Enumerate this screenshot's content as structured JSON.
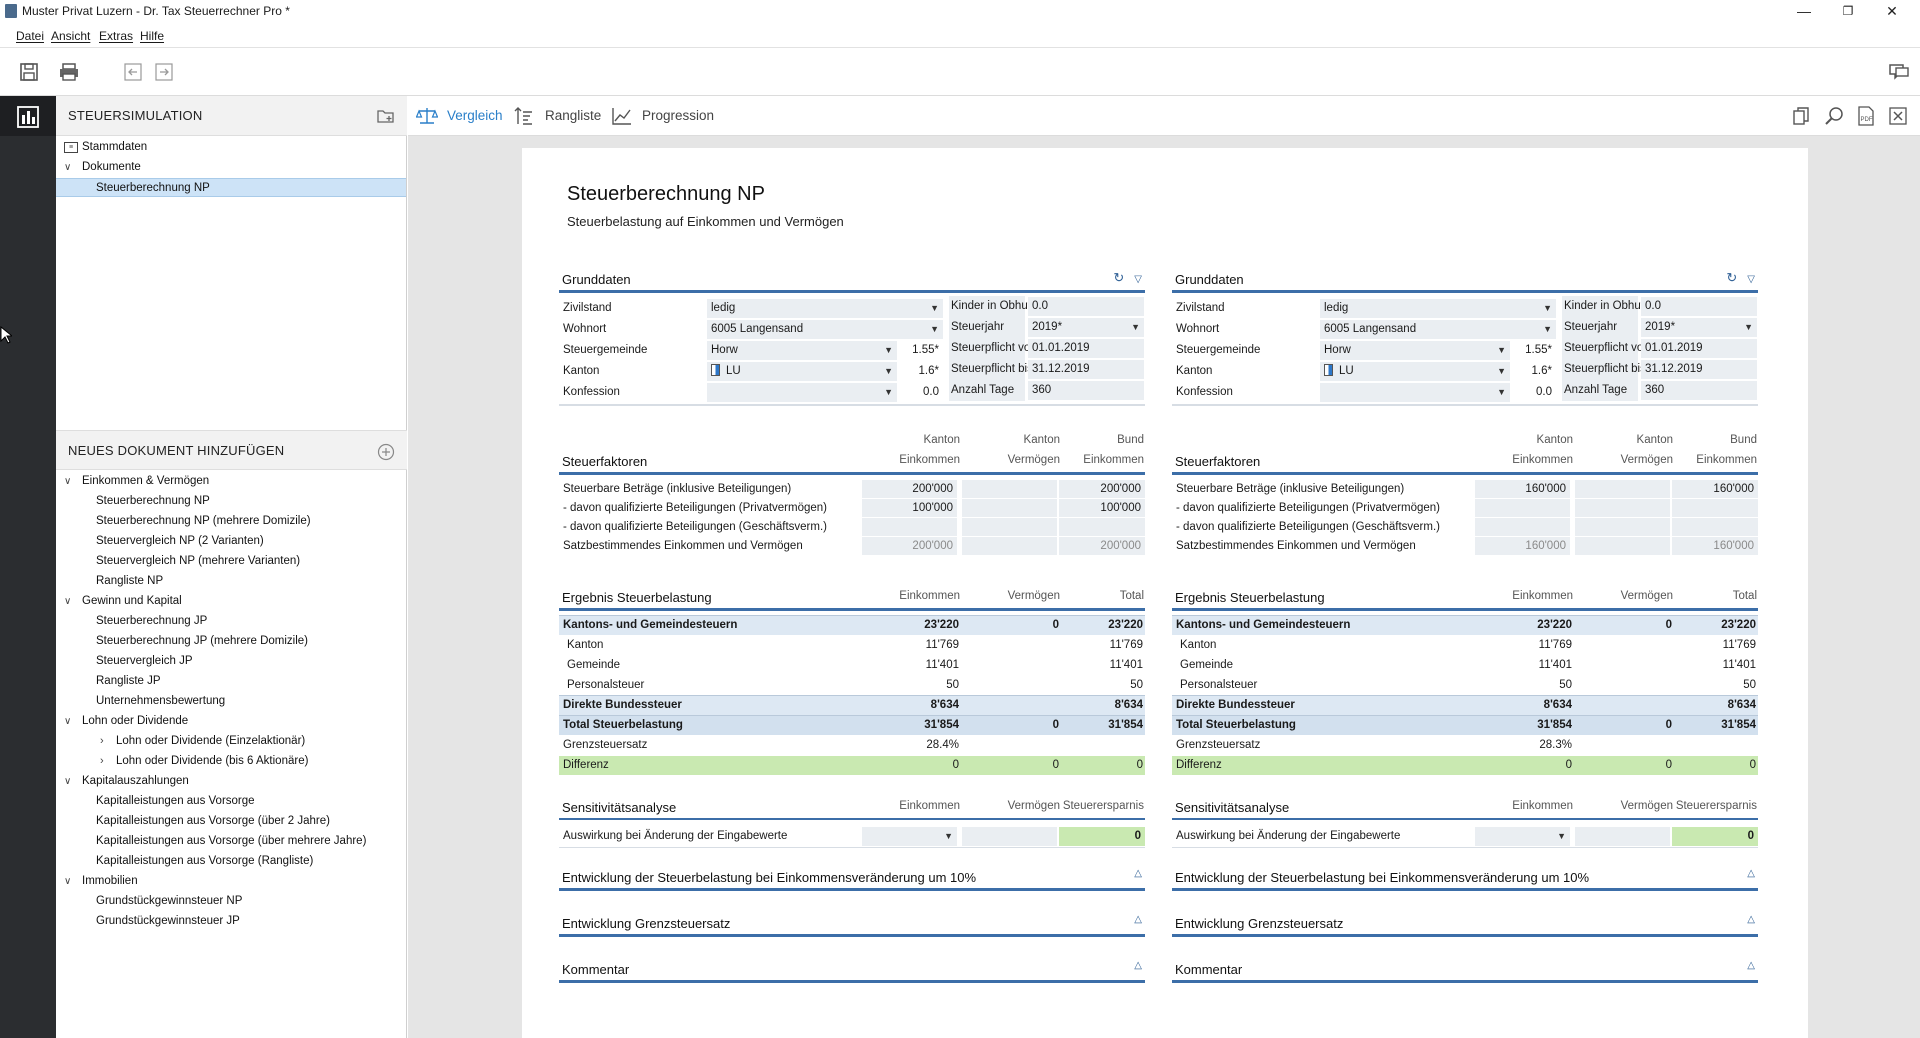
{
  "window": {
    "title": "Muster Privat Luzern - Dr. Tax Steuerrechner Pro *"
  },
  "menu": [
    "Datei",
    "Ansicht",
    "Extras",
    "Hilfe"
  ],
  "sidebar": {
    "section1_title": "STEUERSIMULATION",
    "tree1": [
      {
        "label": "Stammdaten",
        "level": 0
      },
      {
        "label": "Dokumente",
        "level": 0
      },
      {
        "label": "Steuerberechnung NP",
        "level": 1
      }
    ],
    "section2_title": "NEUES DOKUMENT HINZUFÜGEN",
    "tree2": [
      {
        "label": "Einkommen & Vermögen",
        "level": 0
      },
      {
        "label": "Steuerberechnung NP",
        "level": 1
      },
      {
        "label": "Steuerberechnung NP (mehrere Domizile)",
        "level": 1
      },
      {
        "label": "Steuervergleich NP (2 Varianten)",
        "level": 1
      },
      {
        "label": "Steuervergleich NP (mehrere Varianten)",
        "level": 1
      },
      {
        "label": "Rangliste NP",
        "level": 1
      },
      {
        "label": "Gewinn und Kapital",
        "level": 0
      },
      {
        "label": "Steuerberechnung JP",
        "level": 1
      },
      {
        "label": "Steuerberechnung JP (mehrere Domizile)",
        "level": 1
      },
      {
        "label": "Steuervergleich JP",
        "level": 1
      },
      {
        "label": "Rangliste JP",
        "level": 1
      },
      {
        "label": "Unternehmensbewertung",
        "level": 1
      },
      {
        "label": "Lohn oder Dividende",
        "level": 0
      },
      {
        "label": "Lohn oder Dividende (Einzelaktionär)",
        "level": 2
      },
      {
        "label": "Lohn oder Dividende (bis 6 Aktionäre)",
        "level": 2
      },
      {
        "label": "Kapitalauszahlungen",
        "level": 0
      },
      {
        "label": "Kapitalleistungen aus Vorsorge",
        "level": 1
      },
      {
        "label": "Kapitalleistungen aus Vorsorge (über 2 Jahre)",
        "level": 1
      },
      {
        "label": "Kapitalleistungen aus Vorsorge (über mehrere Jahre)",
        "level": 1
      },
      {
        "label": "Kapitalleistungen aus Vorsorge (Rangliste)",
        "level": 1
      },
      {
        "label": "Immobilien",
        "level": 0
      },
      {
        "label": "Grundstückgewinnsteuer NP",
        "level": 1
      },
      {
        "label": "Grundstückgewinnsteuer JP",
        "level": 1
      }
    ]
  },
  "tabs": [
    "Vergleich",
    "Rangliste",
    "Progression"
  ],
  "doc": {
    "title": "Steuerberechnung NP",
    "subtitle": "Steuerbelastung auf Einkommen und Vermögen"
  },
  "columns": [
    {
      "grund_title": "Grunddaten",
      "grund": [
        {
          "label": "Zivilstand",
          "value": "ledig",
          "num": "",
          "rlabel": "Kinder in Obhut",
          "rvalue": "0.0"
        },
        {
          "label": "Wohnort",
          "value": "6005 Langensand",
          "num": "",
          "rlabel": "Steuerjahr",
          "rvalue": "2019*"
        },
        {
          "label": "Steuergemeinde",
          "value": "Horw",
          "num": "1.55*",
          "rlabel": "Steuerpflicht von",
          "rvalue": "01.01.2019"
        },
        {
          "label": "Kanton",
          "value": "LU",
          "num": "1.6*",
          "rlabel": "Steuerpflicht bis",
          "rvalue": "31.12.2019"
        },
        {
          "label": "Konfession",
          "value": "",
          "num": "0.0",
          "rlabel": "Anzahl Tage",
          "rvalue": "360"
        }
      ],
      "faktoren_title": "Steuerfaktoren",
      "faktoren_headers": [
        [
          "Kanton",
          "Einkommen"
        ],
        [
          "Kanton",
          "Vermögen"
        ],
        [
          "Bund",
          "Einkommen"
        ]
      ],
      "faktoren": [
        {
          "label": "Steuerbare Beträge (inklusive Beteiligungen)",
          "v": [
            "200'000",
            "",
            "200'000"
          ]
        },
        {
          "label": "- davon qualifizierte Beteiligungen (Privatvermögen)",
          "v": [
            "100'000",
            "",
            "100'000"
          ]
        },
        {
          "label": "- davon qualifizierte Beteiligungen (Geschäftsverm.)",
          "v": [
            "",
            "",
            ""
          ]
        },
        {
          "label": "Satzbestimmendes Einkommen und Vermögen",
          "v": [
            "200'000",
            "",
            "200'000"
          ]
        }
      ],
      "ergebnis_title": "Ergebnis Steuerbelastung",
      "ergebnis_headers": [
        "Einkommen",
        "Vermögen",
        "Total"
      ],
      "ergebnis": [
        {
          "label": "Kantons- und Gemeindesteuern",
          "v": [
            "23'220",
            "0",
            "23'220"
          ]
        },
        {
          "label": "Kanton",
          "v": [
            "11'769",
            "",
            "11'769"
          ]
        },
        {
          "label": "Gemeinde",
          "v": [
            "11'401",
            "",
            "11'401"
          ]
        },
        {
          "label": "Personalsteuer",
          "v": [
            "50",
            "",
            "50"
          ]
        },
        {
          "label": "Direkte Bundessteuer",
          "v": [
            "8'634",
            "",
            "8'634"
          ]
        },
        {
          "label": "Total Steuerbelastung",
          "v": [
            "31'854",
            "0",
            "31'854"
          ]
        },
        {
          "label": "Grenzsteuersatz",
          "v": [
            "28.4%",
            "",
            ""
          ]
        },
        {
          "label": "Differenz",
          "v": [
            "0",
            "0",
            "0"
          ]
        }
      ],
      "sens_title": "Sensitivitätsanalyse",
      "sens_headers": [
        "Einkommen",
        "Vermögen",
        "Steuerersparnis"
      ],
      "sens_label": "Auswirkung bei Änderung der Eingabewerte",
      "sens_value": "0",
      "collapsed": [
        "Entwicklung der Steuerbelastung bei Einkommensveränderung um 10%",
        "Entwicklung Grenzsteuersatz",
        "Kommentar"
      ]
    },
    {
      "grund_title": "Grunddaten",
      "grund": [
        {
          "label": "Zivilstand",
          "value": "ledig",
          "num": "",
          "rlabel": "Kinder in Obhut",
          "rvalue": "0.0"
        },
        {
          "label": "Wohnort",
          "value": "6005 Langensand",
          "num": "",
          "rlabel": "Steuerjahr",
          "rvalue": "2019*"
        },
        {
          "label": "Steuergemeinde",
          "value": "Horw",
          "num": "1.55*",
          "rlabel": "Steuerpflicht von",
          "rvalue": "01.01.2019"
        },
        {
          "label": "Kanton",
          "value": "LU",
          "num": "1.6*",
          "rlabel": "Steuerpflicht bis",
          "rvalue": "31.12.2019"
        },
        {
          "label": "Konfession",
          "value": "",
          "num": "0.0",
          "rlabel": "Anzahl Tage",
          "rvalue": "360"
        }
      ],
      "faktoren_title": "Steuerfaktoren",
      "faktoren_headers": [
        [
          "Kanton",
          "Einkommen"
        ],
        [
          "Kanton",
          "Vermögen"
        ],
        [
          "Bund",
          "Einkommen"
        ]
      ],
      "faktoren": [
        {
          "label": "Steuerbare Beträge (inklusive Beteiligungen)",
          "v": [
            "160'000",
            "",
            "160'000"
          ]
        },
        {
          "label": "- davon qualifizierte Beteiligungen (Privatvermögen)",
          "v": [
            "",
            "",
            ""
          ]
        },
        {
          "label": "- davon qualifizierte Beteiligungen (Geschäftsverm.)",
          "v": [
            "",
            "",
            ""
          ]
        },
        {
          "label": "Satzbestimmendes Einkommen und Vermögen",
          "v": [
            "160'000",
            "",
            "160'000"
          ]
        }
      ],
      "ergebnis_title": "Ergebnis Steuerbelastung",
      "ergebnis_headers": [
        "Einkommen",
        "Vermögen",
        "Total"
      ],
      "ergebnis": [
        {
          "label": "Kantons- und Gemeindesteuern",
          "v": [
            "23'220",
            "0",
            "23'220"
          ]
        },
        {
          "label": "Kanton",
          "v": [
            "11'769",
            "",
            "11'769"
          ]
        },
        {
          "label": "Gemeinde",
          "v": [
            "11'401",
            "",
            "11'401"
          ]
        },
        {
          "label": "Personalsteuer",
          "v": [
            "50",
            "",
            "50"
          ]
        },
        {
          "label": "Direkte Bundessteuer",
          "v": [
            "8'634",
            "",
            "8'634"
          ]
        },
        {
          "label": "Total Steuerbelastung",
          "v": [
            "31'854",
            "0",
            "31'854"
          ]
        },
        {
          "label": "Grenzsteuersatz",
          "v": [
            "28.3%",
            "",
            ""
          ]
        },
        {
          "label": "Differenz",
          "v": [
            "0",
            "0",
            "0"
          ]
        }
      ],
      "sens_title": "Sensitivitätsanalyse",
      "sens_headers": [
        "Einkommen",
        "Vermögen",
        "Steuerersparnis"
      ],
      "sens_label": "Auswirkung bei Änderung der Eingabewerte",
      "sens_value": "0",
      "collapsed": [
        "Entwicklung der Steuerbelastung bei Einkommensveränderung um 10%",
        "Entwicklung Grenzsteuersatz",
        "Kommentar"
      ]
    }
  ],
  "colors": {
    "accent": "#2a7fc9",
    "section_line": "#3c6ea8",
    "highlight_green": "#c9e9b1",
    "sidebar_dark": "#2b2d30"
  }
}
